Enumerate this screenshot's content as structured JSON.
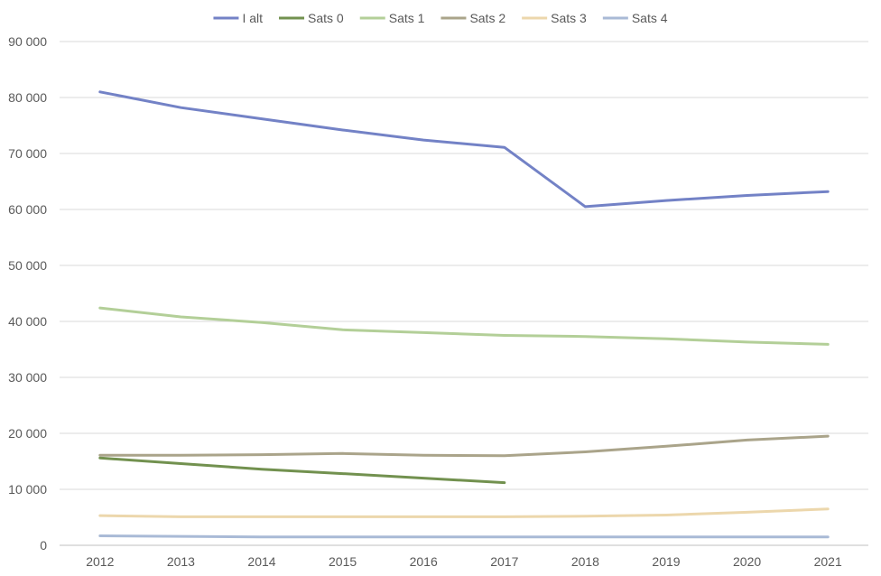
{
  "chart_data": {
    "type": "line",
    "title": "",
    "xlabel": "",
    "ylabel": "",
    "categories": [
      "2012",
      "2013",
      "2014",
      "2015",
      "2016",
      "2017",
      "2018",
      "2019",
      "2020",
      "2021"
    ],
    "ylim": [
      0,
      90000
    ],
    "yticks": [
      0,
      10000,
      20000,
      30000,
      40000,
      50000,
      60000,
      70000,
      80000,
      90000
    ],
    "ytick_labels": [
      "0",
      "10 000",
      "20 000",
      "30 000",
      "40 000",
      "50 000",
      "60 000",
      "70 000",
      "80 000",
      "90 000"
    ],
    "grid": "horizontal",
    "legend_position": "top",
    "series": [
      {
        "name": "I alt",
        "color": "#7382c6",
        "values": [
          81000,
          78200,
          76200,
          74200,
          72400,
          71100,
          60500,
          61600,
          62500,
          63200
        ]
      },
      {
        "name": "Sats 0",
        "color": "#72914f",
        "values": [
          15600,
          14600,
          13600,
          12800,
          12000,
          11200,
          null,
          null,
          null,
          null
        ]
      },
      {
        "name": "Sats 1",
        "color": "#b3cf98",
        "values": [
          42400,
          40800,
          39800,
          38500,
          38000,
          37500,
          37300,
          36900,
          36300,
          35900
        ]
      },
      {
        "name": "Sats 2",
        "color": "#aaa48a",
        "values": [
          16100,
          16100,
          16200,
          16400,
          16100,
          16000,
          16700,
          17700,
          18800,
          19500
        ]
      },
      {
        "name": "Sats 3",
        "color": "#ecd7ac",
        "values": [
          5300,
          5100,
          5100,
          5100,
          5100,
          5100,
          5200,
          5400,
          5900,
          6500
        ]
      },
      {
        "name": "Sats 4",
        "color": "#a9bad6",
        "values": [
          1700,
          1600,
          1500,
          1500,
          1500,
          1500,
          1500,
          1500,
          1500,
          1500
        ]
      }
    ]
  }
}
